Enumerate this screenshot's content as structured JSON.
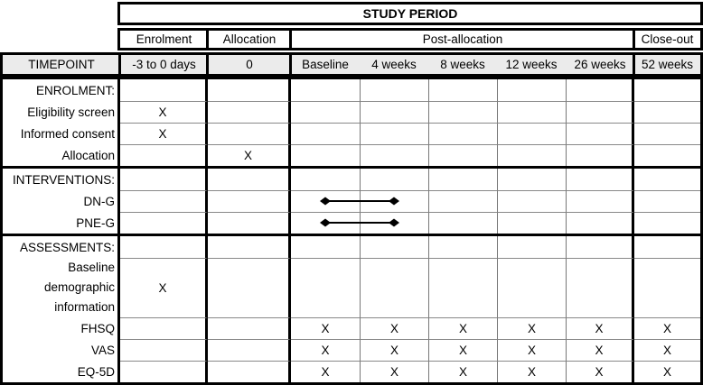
{
  "header": {
    "study_period_label": "STUDY PERIOD",
    "phase_columns": [
      "Enrolment",
      "Allocation",
      "Post-allocation",
      "Close-out"
    ],
    "timepoint_label": "TIMEPOINT",
    "timepoints": [
      "-3 to 0 days",
      "0",
      "Baseline",
      "4 weeks",
      "8 weeks",
      "12 weeks",
      "26 weeks",
      "52 weeks"
    ]
  },
  "columns": [
    "Enrolment",
    "Allocation",
    "Baseline",
    "4 weeks",
    "8 weeks",
    "12 weeks",
    "26 weeks",
    "52 weeks"
  ],
  "mark_symbol": "X",
  "sections": [
    {
      "title": "ENROLMENT:",
      "rows": [
        {
          "label": "Eligibility screen",
          "marks": [
            "X",
            "",
            "",
            "",
            "",
            "",
            "",
            ""
          ]
        },
        {
          "label": "Informed consent",
          "marks": [
            "X",
            "",
            "",
            "",
            "",
            "",
            "",
            ""
          ]
        },
        {
          "label": "Allocation",
          "marks": [
            "",
            "X",
            "",
            "",
            "",
            "",
            "",
            ""
          ]
        }
      ]
    },
    {
      "title": "INTERVENTIONS:",
      "rows": [
        {
          "label": "DN-G",
          "marks": [
            "",
            "",
            "",
            "",
            "",
            "",
            "",
            ""
          ],
          "connector": {
            "from": "Baseline",
            "to": "4 weeks"
          }
        },
        {
          "label": "PNE-G",
          "marks": [
            "",
            "",
            "",
            "",
            "",
            "",
            "",
            ""
          ],
          "connector": {
            "from": "Baseline",
            "to": "4 weeks"
          }
        }
      ]
    },
    {
      "title": "ASSESSMENTS:",
      "rows": [
        {
          "label": "Baseline demographic information",
          "tall": true,
          "marks": [
            "X",
            "",
            "",
            "",
            "",
            "",
            "",
            ""
          ]
        },
        {
          "label": "FHSQ",
          "marks": [
            "",
            "",
            "X",
            "X",
            "X",
            "X",
            "X",
            "X"
          ]
        },
        {
          "label": "VAS",
          "marks": [
            "",
            "",
            "X",
            "X",
            "X",
            "X",
            "X",
            "X"
          ]
        },
        {
          "label": "EQ-5D",
          "marks": [
            "",
            "",
            "X",
            "X",
            "X",
            "X",
            "X",
            "X"
          ]
        }
      ]
    }
  ],
  "colors": {
    "thick_border": "#000000",
    "thin_line": "#808080",
    "timepoint_row_bg": "#ebebeb",
    "text": "#000000"
  }
}
